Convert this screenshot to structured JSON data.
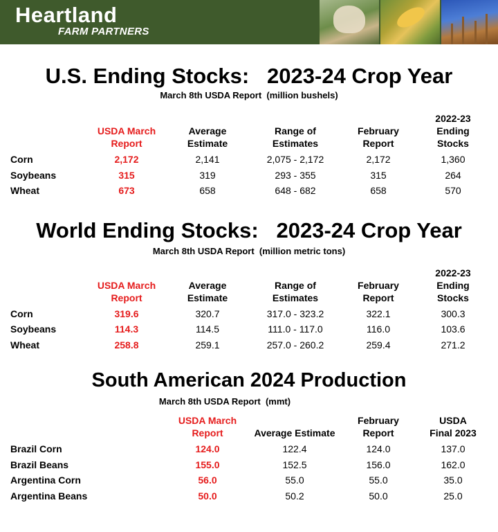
{
  "header": {
    "brand_name": "Heartland",
    "brand_sub": "FARM PARTNERS",
    "photos": [
      "cow-photo",
      "corn-photo",
      "wheat-photo"
    ]
  },
  "us": {
    "title": "U.S. Ending Stocks:   2023-24 Crop Year",
    "subtitle": "March 8th USDA Report  (million bushels)",
    "columns": [
      [
        "USDA March",
        "Report"
      ],
      [
        "Average",
        "Estimate"
      ],
      [
        "Range of",
        "Estimates"
      ],
      [
        "February",
        "Report"
      ],
      [
        "2022-23",
        "Ending",
        "Stocks"
      ]
    ],
    "rows": [
      {
        "label": "Corn",
        "values": [
          "2,172",
          "2,141",
          "2,075 - 2,172",
          "2,172",
          "1,360"
        ]
      },
      {
        "label": "Soybeans",
        "values": [
          "315",
          "319",
          "293 - 355",
          "315",
          "264"
        ]
      },
      {
        "label": "Wheat",
        "values": [
          "673",
          "658",
          "648 - 682",
          "658",
          "570"
        ]
      }
    ]
  },
  "world": {
    "title": "World Ending Stocks:   2023-24 Crop Year",
    "subtitle": "March 8th USDA Report  (million metric tons)",
    "columns": [
      [
        "USDA March",
        "Report"
      ],
      [
        "Average",
        "Estimate"
      ],
      [
        "Range of",
        "Estimates"
      ],
      [
        "February",
        "Report"
      ],
      [
        "2022-23",
        "Ending",
        "Stocks"
      ]
    ],
    "rows": [
      {
        "label": "Corn",
        "values": [
          "319.6",
          "320.7",
          "317.0 - 323.2",
          "322.1",
          "300.3"
        ]
      },
      {
        "label": "Soybeans",
        "values": [
          "114.3",
          "114.5",
          "111.0 - 117.0",
          "116.0",
          "103.6"
        ]
      },
      {
        "label": "Wheat",
        "values": [
          "258.8",
          "259.1",
          "257.0 - 260.2",
          "259.4",
          "271.2"
        ]
      }
    ]
  },
  "sa": {
    "title": "South American 2024 Production",
    "subtitle": "March 8th USDA Report  (mmt)",
    "columns": [
      [
        "USDA March",
        "Report"
      ],
      [
        "Average  Estimate"
      ],
      [
        "February",
        "Report"
      ],
      [
        "USDA",
        "Final 2023"
      ]
    ],
    "rows": [
      {
        "label": "Brazil Corn",
        "values": [
          "124.0",
          "122.4",
          "124.0",
          "137.0"
        ]
      },
      {
        "label": "Brazil Beans",
        "values": [
          "155.0",
          "152.5",
          "156.0",
          "162.0"
        ]
      },
      {
        "label": "Argentina Corn",
        "values": [
          "56.0",
          "55.0",
          "55.0",
          "35.0"
        ]
      },
      {
        "label": "Argentina Beans",
        "values": [
          "50.0",
          "50.2",
          "50.0",
          "25.0"
        ]
      }
    ]
  },
  "colors": {
    "header_green": "#3f5a2c",
    "highlight_red": "#e51b1b"
  }
}
